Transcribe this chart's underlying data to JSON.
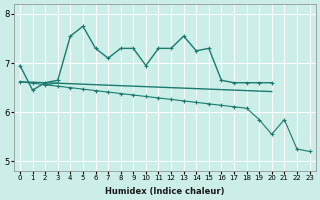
{
  "xlabel": "Humidex (Indice chaleur)",
  "ylabel": "",
  "background_color": "#cceee8",
  "grid_color": "#ffffff",
  "line_color": "#1a7a6e",
  "x": [
    0,
    1,
    2,
    3,
    4,
    5,
    6,
    7,
    8,
    9,
    10,
    11,
    12,
    13,
    14,
    15,
    16,
    17,
    18,
    19,
    20,
    21,
    22,
    23
  ],
  "line1_y": [
    6.95,
    6.45,
    6.6,
    6.65,
    7.55,
    7.75,
    7.3,
    7.1,
    7.3,
    7.3,
    6.95,
    7.3,
    7.3,
    7.55,
    7.25,
    7.3,
    6.65,
    6.6,
    6.6,
    6.6,
    6.6,
    null,
    null,
    null
  ],
  "line2_y": [
    null,
    null,
    6.55,
    6.6,
    null,
    null,
    6.35,
    null,
    null,
    null,
    null,
    null,
    null,
    null,
    null,
    null,
    null,
    null,
    null,
    null,
    null,
    null,
    null,
    null
  ],
  "line3_y": [
    6.62,
    6.61,
    6.6,
    6.59,
    6.58,
    6.57,
    6.56,
    6.55,
    6.54,
    6.53,
    6.52,
    6.51,
    6.5,
    6.49,
    6.48,
    6.47,
    6.46,
    6.45,
    6.44,
    6.43,
    6.42,
    null,
    null,
    null
  ],
  "line4_y": [
    6.62,
    6.59,
    6.56,
    6.53,
    6.5,
    6.47,
    6.44,
    6.41,
    6.38,
    6.35,
    6.32,
    6.29,
    6.26,
    6.23,
    6.2,
    6.17,
    6.14,
    6.11,
    6.08,
    5.85,
    5.55,
    5.85,
    5.25,
    5.2
  ],
  "ylim": [
    4.8,
    8.2
  ],
  "xlim": [
    -0.5,
    23.5
  ],
  "yticks": [
    5,
    6,
    7,
    8
  ],
  "xticks": [
    0,
    1,
    2,
    3,
    4,
    5,
    6,
    7,
    8,
    9,
    10,
    11,
    12,
    13,
    14,
    15,
    16,
    17,
    18,
    19,
    20,
    21,
    22,
    23
  ]
}
